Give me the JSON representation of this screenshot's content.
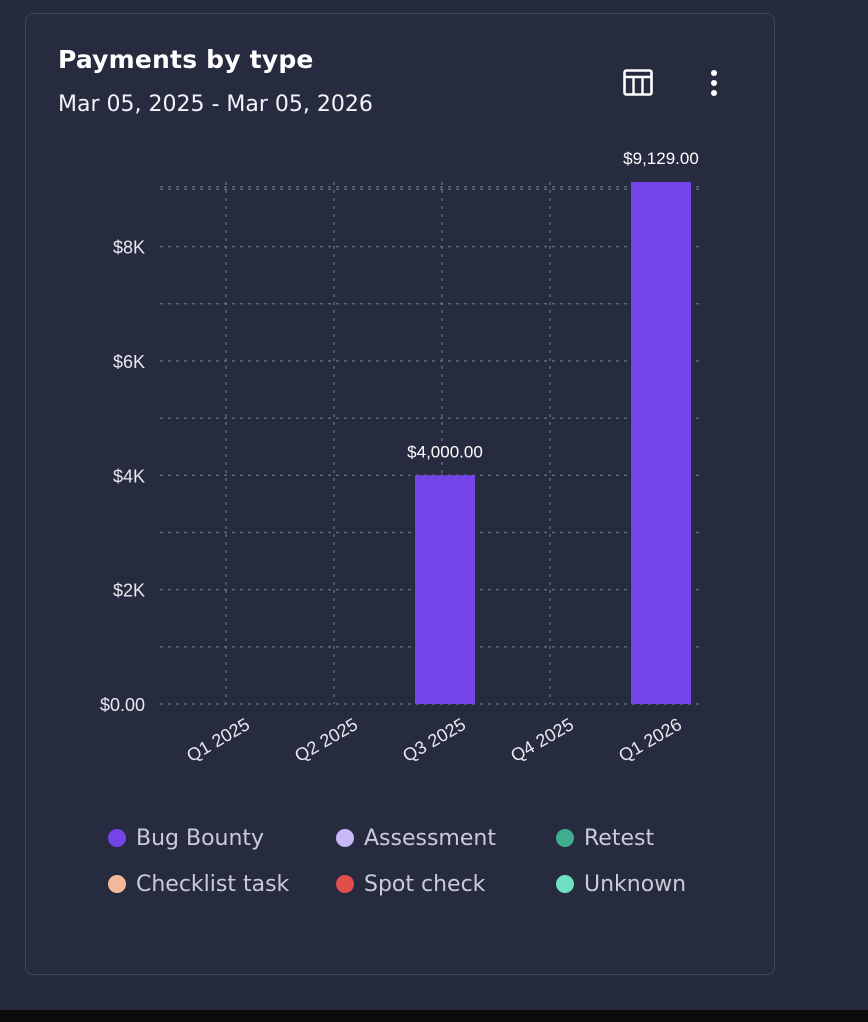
{
  "card": {
    "title": "Payments by type",
    "date_range": "Mar 05, 2025 - Mar 05, 2026",
    "icons": {
      "table_toggle": "table-icon",
      "menu": "more-vertical-icon"
    }
  },
  "chart_data": {
    "type": "bar",
    "title": "Payments by type",
    "categories": [
      "Q1 2025",
      "Q2 2025",
      "Q3 2025",
      "Q4 2025",
      "Q1 2026"
    ],
    "series": [
      {
        "name": "Bug Bounty",
        "values": [
          0,
          0,
          4000,
          0,
          9129
        ],
        "color": "#7444e9"
      },
      {
        "name": "Assessment",
        "values": [
          0,
          0,
          0,
          0,
          0
        ],
        "color": "#c9b8f6"
      },
      {
        "name": "Retest",
        "values": [
          0,
          0,
          0,
          0,
          0
        ],
        "color": "#3fae8e"
      },
      {
        "name": "Checklist task",
        "values": [
          0,
          0,
          0,
          0,
          0
        ],
        "color": "#f2b89a"
      },
      {
        "name": "Spot check",
        "values": [
          0,
          0,
          0,
          0,
          0
        ],
        "color": "#e0504b"
      },
      {
        "name": "Unknown",
        "values": [
          0,
          0,
          0,
          0,
          0
        ],
        "color": "#6fe0c4"
      }
    ],
    "data_labels": [
      "",
      "",
      "$4,000.00",
      "",
      "$9,129.00"
    ],
    "y_ticks": [
      0,
      2000,
      4000,
      6000,
      8000
    ],
    "y_tick_labels": [
      "$0.00",
      "$2K",
      "$4K",
      "$6K",
      "$8K"
    ],
    "ylim": [
      0,
      9129
    ],
    "xlabel": "",
    "ylabel": "",
    "grid": true,
    "legend_position": "bottom"
  },
  "colors": {
    "background": "#262b40",
    "grid": "#6a6f80",
    "tick_text": "#e8e9ee",
    "bar": "#7444e9"
  }
}
